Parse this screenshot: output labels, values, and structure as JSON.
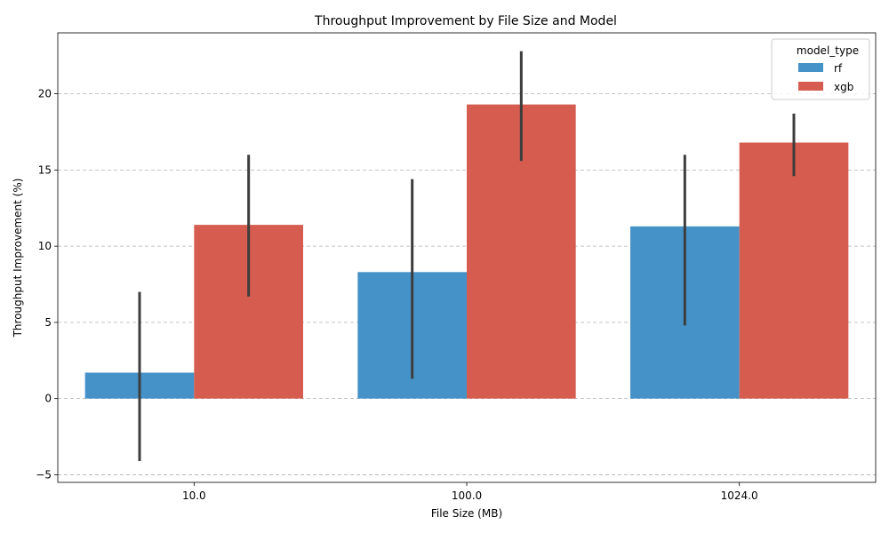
{
  "chart_data": {
    "type": "bar",
    "title": "Throughput Improvement by File Size and Model",
    "xlabel": "File Size (MB)",
    "ylabel": "Throughput Improvement (%)",
    "categories": [
      "10.0",
      "100.0",
      "1024.0"
    ],
    "ylim": [
      -5.5,
      24
    ],
    "yticks": [
      -5,
      0,
      5,
      10,
      15,
      20
    ],
    "grid": "horizontal dashed",
    "legend": {
      "title": "model_type",
      "placement": "top-right"
    },
    "series": [
      {
        "name": "rf",
        "color": "#4592c8",
        "values": [
          1.7,
          8.3,
          11.3
        ],
        "error_low": [
          -4.1,
          1.3,
          4.8
        ],
        "error_high": [
          7.0,
          14.4,
          16.0
        ]
      },
      {
        "name": "xgb",
        "color": "#d55c4f",
        "values": [
          11.4,
          19.3,
          16.8
        ],
        "error_low": [
          6.7,
          15.6,
          14.6
        ],
        "error_high": [
          16.0,
          22.8,
          18.7
        ]
      }
    ]
  }
}
